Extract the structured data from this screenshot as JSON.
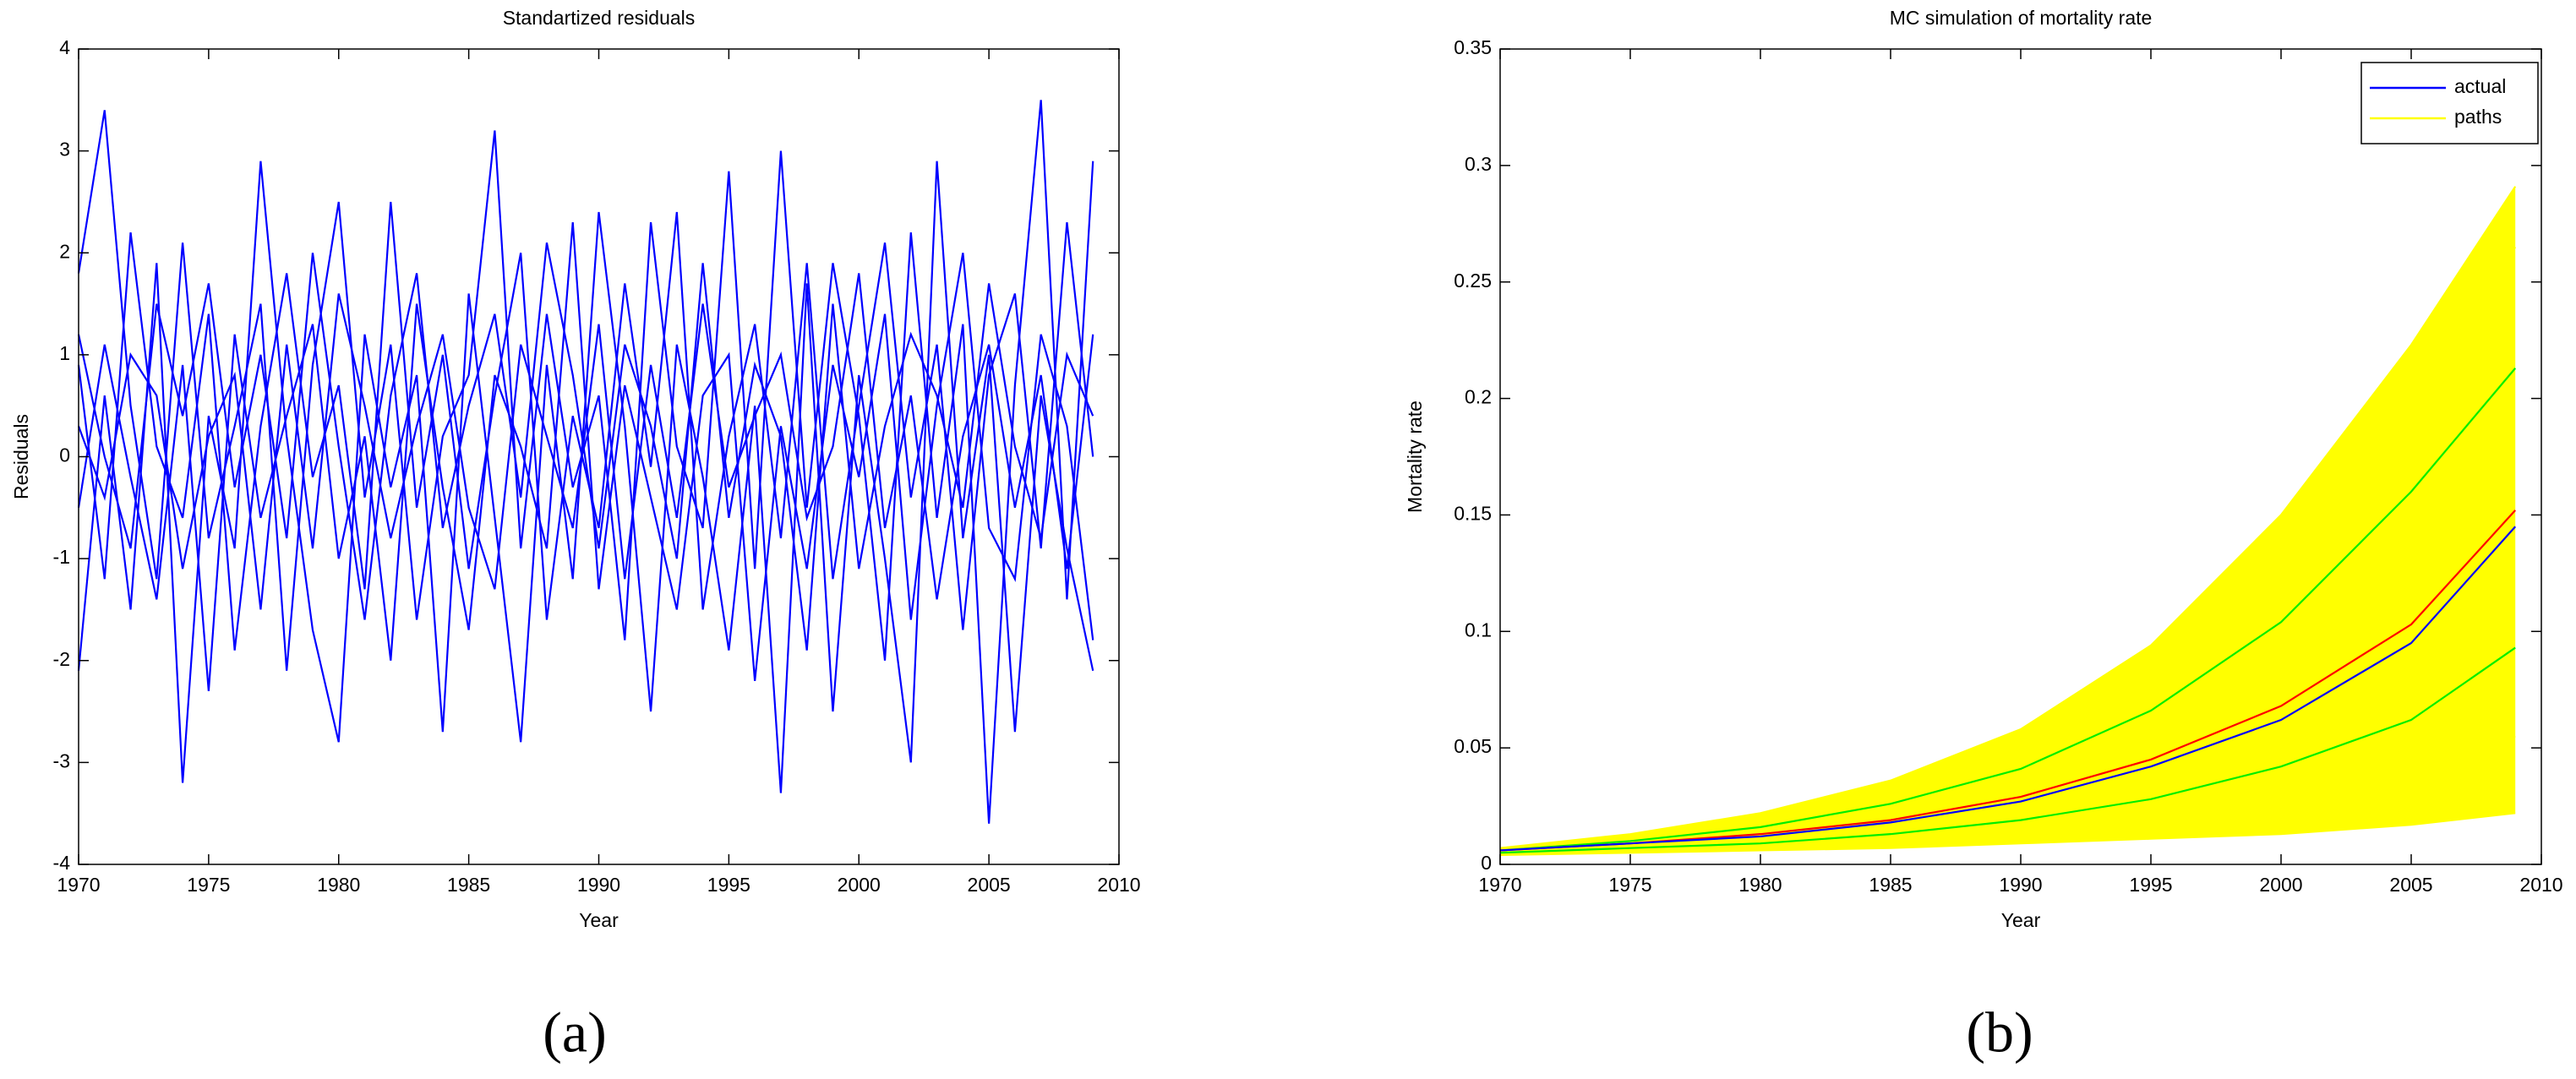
{
  "chart_data": [
    {
      "type": "line",
      "title": "Standartized residuals",
      "xlabel": "Year",
      "ylabel": "Residuals",
      "x": [
        1970,
        1971,
        1972,
        1973,
        1974,
        1975,
        1976,
        1977,
        1978,
        1979,
        1980,
        1981,
        1982,
        1983,
        1984,
        1985,
        1986,
        1987,
        1988,
        1989,
        1990,
        1991,
        1992,
        1993,
        1994,
        1995,
        1996,
        1997,
        1998,
        1999,
        2000,
        2001,
        2002,
        2003,
        2004,
        2005,
        2006,
        2007,
        2008,
        2009
      ],
      "xlim": [
        1970,
        2010
      ],
      "xticks": [
        1970,
        1975,
        1980,
        1985,
        1990,
        1995,
        2000,
        2005,
        2010
      ],
      "ylim": [
        -4,
        4
      ],
      "yticks": [
        -4,
        -3,
        -2,
        -1,
        0,
        1,
        2,
        3,
        4
      ],
      "grid": false,
      "series": [
        {
          "color": "#0000ff",
          "values": [
            1.8,
            3.4,
            0.5,
            -1.2,
            2.1,
            -0.8,
            0.3,
            1.5,
            -2.1,
            0.9,
            2.5,
            -0.4,
            1.1,
            -1.6,
            0.2,
            0.8,
            3.2,
            -0.9,
            1.4,
            -0.3,
            0.6,
            -1.8,
            2.3,
            0.1,
            -0.7,
            2.8,
            -1.1,
            3.0,
            -0.5,
            1.9,
            0.4,
            -2.0,
            2.2,
            -0.6,
            1.3,
            -3.6,
            0.7,
            3.5,
            -1.4,
            2.9
          ]
        },
        {
          "color": "#0000ff",
          "values": [
            -2.1,
            0.6,
            -1.5,
            1.9,
            -3.2,
            0.4,
            -0.9,
            2.9,
            0.2,
            -1.7,
            -2.8,
            1.2,
            -0.3,
            0.8,
            -2.7,
            1.6,
            -0.6,
            -2.8,
            0.9,
            -1.2,
            2.4,
            0.3,
            -2.5,
            1.1,
            -0.2,
            -1.9,
            0.5,
            -3.3,
            1.7,
            -2.5,
            0.8,
            -1.0,
            -3.0,
            2.9,
            -0.8,
            1.0,
            -2.7,
            0.6,
            -0.9,
            -2.1
          ]
        },
        {
          "color": "#0000ff",
          "values": [
            0.9,
            -1.2,
            2.2,
            0.1,
            -0.6,
            1.4,
            -1.9,
            0.3,
            1.8,
            -0.2,
            0.7,
            -1.3,
            2.5,
            -0.5,
            1.0,
            -1.1,
            0.6,
            2.0,
            -1.6,
            0.4,
            -0.7,
            1.7,
            -0.1,
            2.4,
            -1.5,
            0.2,
            1.3,
            -0.8,
            1.9,
            -1.2,
            0.5,
            2.1,
            -0.4,
            1.1,
            -1.7,
            0.8,
            1.6,
            -0.9,
            2.3,
            0.0
          ]
        },
        {
          "color": "#0000ff",
          "values": [
            -0.5,
            1.1,
            -0.2,
            -1.4,
            0.9,
            -2.3,
            1.2,
            -0.6,
            0.4,
            1.3,
            -1.0,
            0.2,
            -2.0,
            1.5,
            -0.3,
            -1.7,
            0.8,
            0.1,
            -0.9,
            2.3,
            -1.3,
            0.7,
            -0.4,
            -1.5,
            0.6,
            1.0,
            -2.2,
            0.3,
            -1.1,
            0.9,
            -0.2,
            1.4,
            -1.6,
            0.5,
            2.0,
            -0.7,
            -1.2,
            1.2,
            0.3,
            -1.8
          ]
        },
        {
          "color": "#0000ff",
          "values": [
            0.3,
            -0.4,
            1.0,
            0.6,
            -1.1,
            0.2,
            0.8,
            -1.5,
            1.1,
            -0.9,
            1.6,
            0.5,
            -0.8,
            0.3,
            1.2,
            -0.5,
            -1.3,
            1.1,
            0.2,
            -0.7,
            1.3,
            -1.2,
            0.9,
            -0.6,
            1.5,
            -0.3,
            0.4,
            1.0,
            -0.6,
            0.1,
            1.8,
            -0.7,
            0.6,
            -1.4,
            0.2,
            1.1,
            -0.5,
            0.8,
            -1.1,
            1.2
          ]
        },
        {
          "color": "#0000ff",
          "values": [
            1.2,
            0.0,
            -0.9,
            1.5,
            0.4,
            1.7,
            -0.3,
            1.0,
            -0.8,
            2.0,
            0.1,
            -1.6,
            0.6,
            1.8,
            -0.7,
            0.5,
            1.4,
            -0.4,
            2.1,
            0.8,
            -0.9,
            1.1,
            0.3,
            -1.0,
            1.9,
            -0.6,
            0.9,
            0.2,
            -1.9,
            1.5,
            -1.1,
            0.3,
            1.2,
            0.6,
            -0.5,
            1.7,
            0.1,
            -0.8,
            1.0,
            0.4
          ]
        }
      ]
    },
    {
      "type": "line",
      "title": "MC simulation of mortality rate",
      "xlabel": "Year",
      "ylabel": "Mortality rate",
      "x": [
        1970,
        1975,
        1980,
        1985,
        1990,
        1995,
        2000,
        2005,
        2009
      ],
      "xlim": [
        1970,
        2010
      ],
      "xticks": [
        1970,
        1975,
        1980,
        1985,
        1990,
        1995,
        2000,
        2005,
        2010
      ],
      "ylim": [
        0,
        0.35
      ],
      "yticks": [
        0,
        0.05,
        0.1,
        0.15,
        0.2,
        0.25,
        0.3,
        0.35
      ],
      "grid": false,
      "legend": "upper right",
      "series": [
        {
          "name": "actual",
          "color": "#0000ff",
          "values": [
            0.006,
            0.009,
            0.012,
            0.018,
            0.027,
            0.042,
            0.062,
            0.095,
            0.145
          ]
        },
        {
          "color": "#ff0000",
          "values": [
            0.006,
            0.009,
            0.013,
            0.019,
            0.029,
            0.045,
            0.068,
            0.103,
            0.152
          ]
        },
        {
          "color": "#00ee00",
          "values": [
            0.006,
            0.01,
            0.016,
            0.026,
            0.041,
            0.066,
            0.104,
            0.16,
            0.213
          ]
        },
        {
          "color": "#00ee00",
          "values": [
            0.005,
            0.007,
            0.009,
            0.013,
            0.019,
            0.028,
            0.042,
            0.062,
            0.093
          ]
        },
        {
          "name": "paths",
          "color": "#ffff00",
          "values": [
            0.007,
            0.013,
            0.022,
            0.036,
            0.058,
            0.094,
            0.15,
            0.223,
            0.291
          ]
        },
        {
          "color": "#ffff00",
          "values": [
            0.007,
            0.012,
            0.02,
            0.032,
            0.051,
            0.082,
            0.13,
            0.2,
            0.265
          ]
        },
        {
          "color": "#ffff00",
          "values": [
            0.005,
            0.006,
            0.008,
            0.01,
            0.014,
            0.02,
            0.028,
            0.04,
            0.055
          ]
        },
        {
          "color": "#ffff00",
          "values": [
            0.004,
            0.005,
            0.006,
            0.007,
            0.009,
            0.011,
            0.013,
            0.017,
            0.022
          ]
        }
      ]
    }
  ],
  "captions": [
    "(a)",
    "(b)"
  ]
}
